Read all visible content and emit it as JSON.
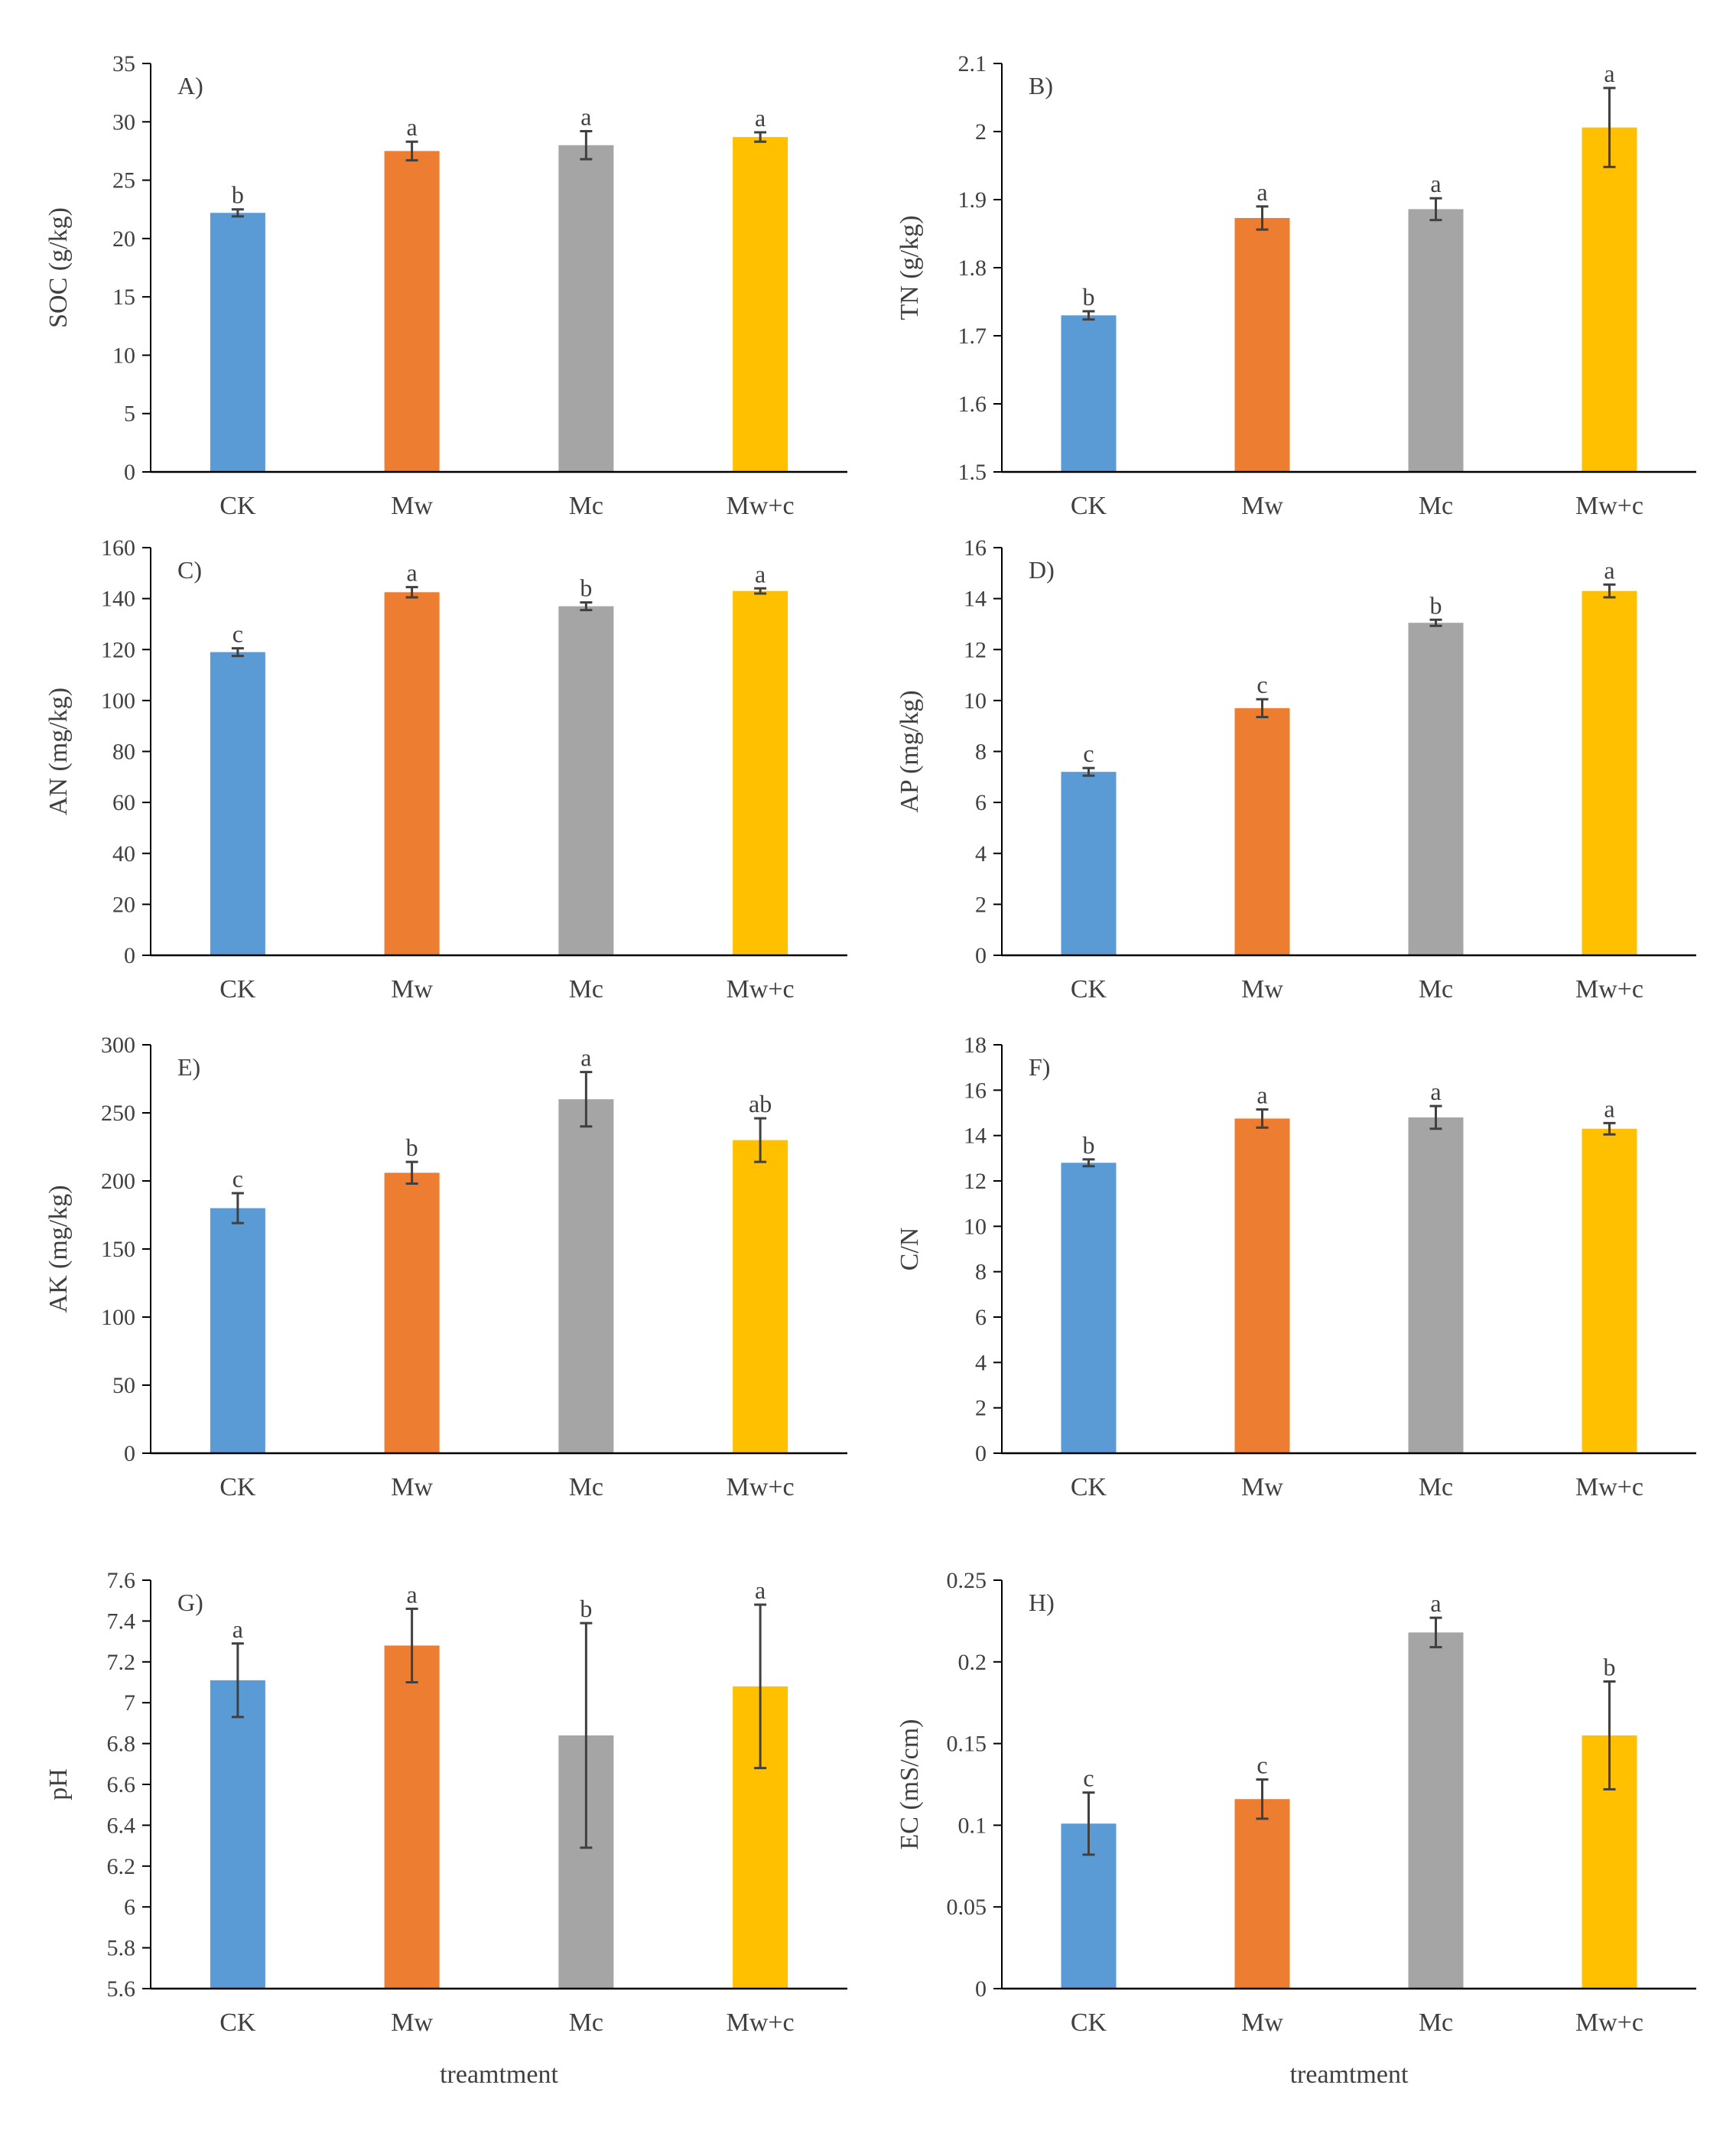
{
  "chart_data": [
    {
      "type": "bar",
      "panel_label": "A)",
      "ylabel": "SOC (g/kg)",
      "xlabel": "",
      "categories": [
        "CK",
        "Mw",
        "Mc",
        "Mw+c"
      ],
      "values": [
        22.2,
        27.5,
        28.0,
        28.7
      ],
      "errors": [
        0.3,
        0.8,
        1.2,
        0.4
      ],
      "significance": [
        "b",
        "a",
        "a",
        "a"
      ],
      "ylim": [
        0,
        35
      ],
      "yticks": [
        "0",
        "5",
        "10",
        "15",
        "20",
        "25",
        "30",
        "35"
      ]
    },
    {
      "type": "bar",
      "panel_label": "B)",
      "ylabel": "TN (g/kg)",
      "xlabel": "",
      "categories": [
        "CK",
        "Mw",
        "Mc",
        "Mw+c"
      ],
      "values": [
        1.73,
        1.873,
        1.886,
        2.006
      ],
      "errors": [
        0.006,
        0.017,
        0.016,
        0.058
      ],
      "significance": [
        "b",
        "a",
        "a",
        "a"
      ],
      "ylim": [
        1.5,
        2.1
      ],
      "yticks": [
        "1.5",
        "1.6",
        "1.7",
        "1.8",
        "1.9",
        "2",
        "2.1"
      ]
    },
    {
      "type": "bar",
      "panel_label": "C)",
      "ylabel": "AN (mg/kg)",
      "xlabel": "",
      "categories": [
        "CK",
        "Mw",
        "Mc",
        "Mw+c"
      ],
      "values": [
        119,
        142.5,
        137,
        143
      ],
      "errors": [
        1.5,
        2.0,
        1.5,
        1.0
      ],
      "significance": [
        "c",
        "a",
        "b",
        "a"
      ],
      "ylim": [
        0,
        160
      ],
      "yticks": [
        "0",
        "20",
        "40",
        "60",
        "80",
        "100",
        "120",
        "140",
        "160"
      ]
    },
    {
      "type": "bar",
      "panel_label": "D)",
      "ylabel": "AP (mg/kg)",
      "xlabel": "",
      "categories": [
        "CK",
        "Mw",
        "Mc",
        "Mw+c"
      ],
      "values": [
        7.2,
        9.7,
        13.05,
        14.3
      ],
      "errors": [
        0.15,
        0.35,
        0.12,
        0.25
      ],
      "significance": [
        "c",
        "c",
        "b",
        "a"
      ],
      "ylim": [
        0,
        16
      ],
      "yticks": [
        "0",
        "2",
        "4",
        "6",
        "8",
        "10",
        "12",
        "14",
        "16"
      ]
    },
    {
      "type": "bar",
      "panel_label": "E)",
      "ylabel": "AK (mg/kg)",
      "xlabel": "",
      "categories": [
        "CK",
        "Mw",
        "Mc",
        "Mw+c"
      ],
      "values": [
        180,
        206,
        260,
        230
      ],
      "errors": [
        11,
        8,
        20,
        16
      ],
      "significance": [
        "c",
        "b",
        "a",
        "ab"
      ],
      "ylim": [
        0,
        300
      ],
      "yticks": [
        "0",
        "50",
        "100",
        "150",
        "200",
        "250",
        "300"
      ]
    },
    {
      "type": "bar",
      "panel_label": "F)",
      "ylabel": "C/N",
      "xlabel": "",
      "categories": [
        "CK",
        "Mw",
        "Mc",
        "Mw+c"
      ],
      "values": [
        12.8,
        14.75,
        14.8,
        14.3
      ],
      "errors": [
        0.15,
        0.4,
        0.5,
        0.25
      ],
      "significance": [
        "b",
        "a",
        "a",
        "a"
      ],
      "ylim": [
        0,
        18
      ],
      "yticks": [
        "0",
        "2",
        "4",
        "6",
        "8",
        "10",
        "12",
        "14",
        "16",
        "18"
      ]
    },
    {
      "type": "bar",
      "panel_label": "G)",
      "ylabel": "pH",
      "xlabel": "treamtment",
      "categories": [
        "CK",
        "Mw",
        "Mc",
        "Mw+c"
      ],
      "values": [
        7.11,
        7.28,
        6.84,
        7.08
      ],
      "errors": [
        0.18,
        0.18,
        0.55,
        0.4
      ],
      "significance": [
        "a",
        "a",
        "b",
        "a"
      ],
      "ylim": [
        5.6,
        7.6
      ],
      "yticks": [
        "5.6",
        "5.8",
        "6",
        "6.2",
        "6.4",
        "6.6",
        "6.8",
        "7",
        "7.2",
        "7.4",
        "7.6"
      ]
    },
    {
      "type": "bar",
      "panel_label": "H)",
      "ylabel": "EC (mS/cm)",
      "xlabel": "treamtment",
      "categories": [
        "CK",
        "Mw",
        "Mc",
        "Mw+c"
      ],
      "values": [
        0.101,
        0.116,
        0.218,
        0.155
      ],
      "errors": [
        0.019,
        0.012,
        0.009,
        0.033
      ],
      "significance": [
        "c",
        "c",
        "a",
        "b"
      ],
      "ylim": [
        0,
        0.25
      ],
      "yticks": [
        "0",
        "0.05",
        "0.1",
        "0.15",
        "0.2",
        "0.25"
      ]
    }
  ],
  "colors": {
    "CK": "#5b9bd5",
    "Mw": "#ed7d31",
    "Mc": "#a5a5a5",
    "Mw+c": "#ffc000",
    "axis": "#000000",
    "error": "#404040",
    "text": "#404040"
  }
}
